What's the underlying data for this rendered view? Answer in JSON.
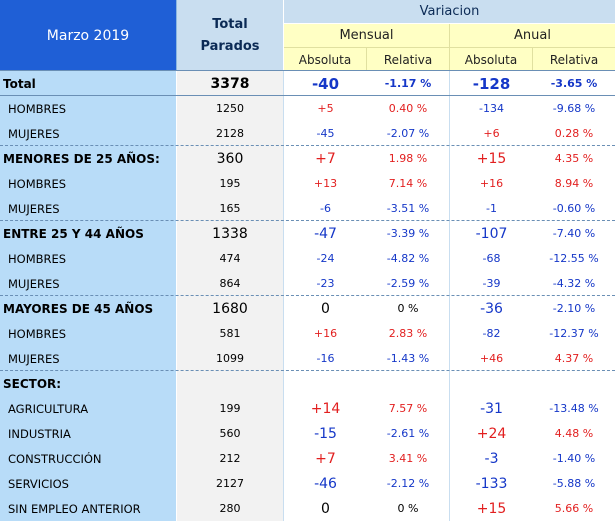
{
  "header": {
    "date_label": "Marzo 2019",
    "total_line1": "Total",
    "total_line2": "Parados",
    "variacion": "Variacion",
    "mensual": "Mensual",
    "anual": "Anual",
    "absoluta": "Absoluta",
    "relativa": "Relativa"
  },
  "rows": [
    {
      "label": "Total",
      "total": "3378",
      "m_abs": "-40",
      "m_rel": "-1.17 %",
      "a_abs": "-128",
      "a_rel": "-3.65 %"
    },
    {
      "label": "HOMBRES",
      "total": "1250",
      "m_abs": "+5",
      "m_rel": "0.40 %",
      "a_abs": "-134",
      "a_rel": "-9.68 %"
    },
    {
      "label": "MUJERES",
      "total": "2128",
      "m_abs": "-45",
      "m_rel": "-2.07 %",
      "a_abs": "+6",
      "a_rel": "0.28 %"
    },
    {
      "label": "MENORES DE 25 AÑOS:",
      "total": "360",
      "m_abs": "+7",
      "m_rel": "1.98 %",
      "a_abs": "+15",
      "a_rel": "4.35 %"
    },
    {
      "label": "HOMBRES",
      "total": "195",
      "m_abs": "+13",
      "m_rel": "7.14 %",
      "a_abs": "+16",
      "a_rel": "8.94 %"
    },
    {
      "label": "MUJERES",
      "total": "165",
      "m_abs": "-6",
      "m_rel": "-3.51 %",
      "a_abs": "-1",
      "a_rel": "-0.60 %"
    },
    {
      "label": "ENTRE 25 Y 44 AÑOS",
      "total": "1338",
      "m_abs": "-47",
      "m_rel": "-3.39 %",
      "a_abs": "-107",
      "a_rel": "-7.40 %"
    },
    {
      "label": "HOMBRES",
      "total": "474",
      "m_abs": "-24",
      "m_rel": "-4.82 %",
      "a_abs": "-68",
      "a_rel": "-12.55 %"
    },
    {
      "label": "MUJERES",
      "total": "864",
      "m_abs": "-23",
      "m_rel": "-2.59 %",
      "a_abs": "-39",
      "a_rel": "-4.32 %"
    },
    {
      "label": "MAYORES DE 45 AÑOS",
      "total": "1680",
      "m_abs": "0",
      "m_rel": "0 %",
      "a_abs": "-36",
      "a_rel": "-2.10 %"
    },
    {
      "label": "HOMBRES",
      "total": "581",
      "m_abs": "+16",
      "m_rel": "2.83 %",
      "a_abs": "-82",
      "a_rel": "-12.37 %"
    },
    {
      "label": "MUJERES",
      "total": "1099",
      "m_abs": "-16",
      "m_rel": "-1.43 %",
      "a_abs": "+46",
      "a_rel": "4.37 %"
    },
    {
      "label": "SECTOR:",
      "total": "",
      "m_abs": "",
      "m_rel": "",
      "a_abs": "",
      "a_rel": ""
    },
    {
      "label": "AGRICULTURA",
      "total": "199",
      "m_abs": "+14",
      "m_rel": "7.57 %",
      "a_abs": "-31",
      "a_rel": "-13.48 %"
    },
    {
      "label": "INDUSTRIA",
      "total": "560",
      "m_abs": "-15",
      "m_rel": "-2.61 %",
      "a_abs": "+24",
      "a_rel": "4.48 %"
    },
    {
      "label": "CONSTRUCCIÓN",
      "total": "212",
      "m_abs": "+7",
      "m_rel": "3.41 %",
      "a_abs": "-3",
      "a_rel": "-1.40 %"
    },
    {
      "label": "SERVICIOS",
      "total": "2127",
      "m_abs": "-46",
      "m_rel": "-2.12 %",
      "a_abs": "-133",
      "a_rel": "-5.88 %"
    },
    {
      "label": "SIN EMPLEO ANTERIOR",
      "total": "280",
      "m_abs": "0",
      "m_rel": "0 %",
      "a_abs": "+15",
      "a_rel": "5.66 %"
    }
  ],
  "colors": {
    "positive": "#e21f1f",
    "negative": "#1537c8",
    "header_blue": "#1f5fd6",
    "label_bg": "#b8dcf8",
    "header_yellow": "#ffffc4"
  }
}
